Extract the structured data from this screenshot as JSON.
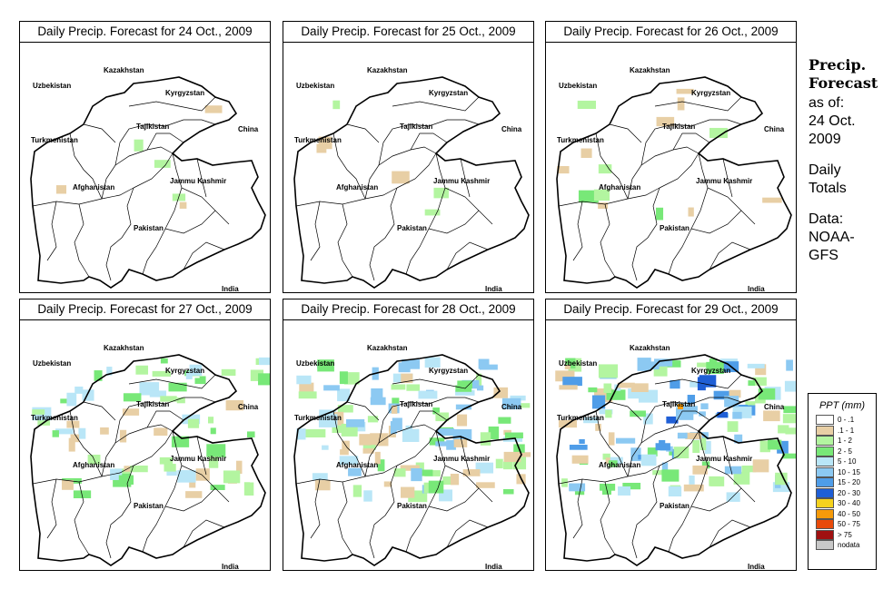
{
  "panels": [
    {
      "title": "Daily Precip. Forecast for  24 Oct., 2009",
      "intensity": 1
    },
    {
      "title": "Daily Precip. Forecast for  25 Oct., 2009",
      "intensity": 1
    },
    {
      "title": "Daily Precip. Forecast for  26 Oct., 2009",
      "intensity": 2
    },
    {
      "title": "Daily Precip. Forecast for  27 Oct., 2009",
      "intensity": 3
    },
    {
      "title": "Daily Precip. Forecast for  28 Oct., 2009",
      "intensity": 4
    },
    {
      "title": "Daily Precip. Forecast for  29 Oct., 2009",
      "intensity": 5
    }
  ],
  "map_labels": {
    "kazakhstan": "Kazakhstan",
    "uzbekistan": "Uzbekistan",
    "kyrgyzstan": "Kyrgyzstan",
    "tajikistan": "Tajikistan",
    "turkmenistan": "Turkmenistan",
    "china": "China",
    "afghanistan": "Afghanistan",
    "jammu_kashmir": "Jammu Kashmir",
    "pakistan": "Pakistan",
    "india": "India"
  },
  "side": {
    "title_line1": "Precip.",
    "title_line2": "Forecast",
    "asof_line1": "as of:",
    "asof_line2": "24 Oct.",
    "asof_line3": "2009",
    "daily_line1": "Daily",
    "daily_line2": "Totals",
    "data_line1": "Data:",
    "data_line2": "NOAA-",
    "data_line3": "GFS"
  },
  "legend": {
    "title": "PPT (mm)",
    "items": [
      {
        "label": "0 - .1",
        "color": "#ffffff"
      },
      {
        "label": ".1 - 1",
        "color": "#e8cfa5"
      },
      {
        "label": "1 - 2",
        "color": "#b3f5a0"
      },
      {
        "label": "2 - 5",
        "color": "#78e878"
      },
      {
        "label": "5 - 10",
        "color": "#b9e6f7"
      },
      {
        "label": "10 - 15",
        "color": "#8cc9f2"
      },
      {
        "label": "15 - 20",
        "color": "#4f9de8"
      },
      {
        "label": "20 - 30",
        "color": "#1f5fd6"
      },
      {
        "label": "30 - 40",
        "color": "#f5d21e"
      },
      {
        "label": "40 - 50",
        "color": "#f59a0a"
      },
      {
        "label": "50 - 75",
        "color": "#e84a0a"
      },
      {
        "label": "> 75",
        "color": "#a01010"
      },
      {
        "label": "nodata",
        "color": "#c8c8c8"
      }
    ]
  }
}
